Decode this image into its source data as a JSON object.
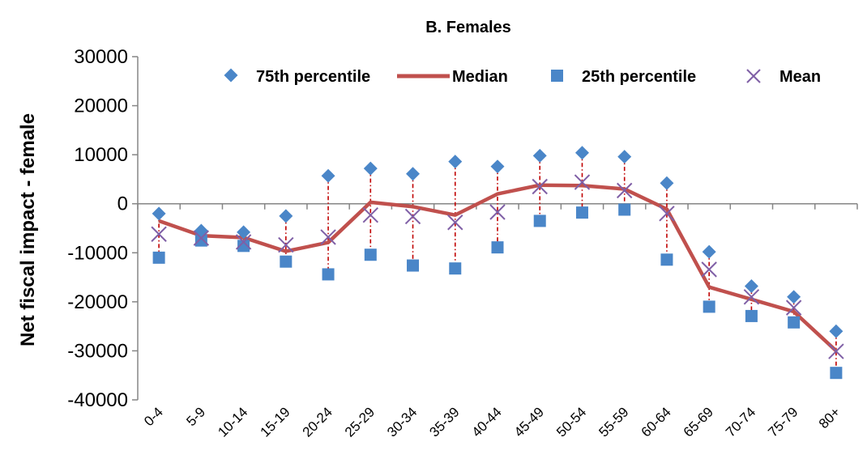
{
  "chart_data": {
    "type": "line",
    "title": "B.  Females",
    "ylabel": "Net fiscal impact - female",
    "xlabel": "",
    "ylim": [
      -40000,
      30000
    ],
    "yticks": [
      30000,
      20000,
      10000,
      0,
      -10000,
      -20000,
      -30000,
      -40000
    ],
    "ytick_labels": [
      "30000",
      "20000",
      "10000",
      "0",
      "-10000",
      "-20000",
      "-30000",
      "-40000"
    ],
    "categories": [
      "0-4",
      "5-9",
      "10-14",
      "15-19",
      "20-24",
      "25-29",
      "30-34",
      "35-39",
      "40-44",
      "45-49",
      "50-54",
      "55-59",
      "60-64",
      "65-69",
      "70-74",
      "75-79",
      "80+"
    ],
    "grid": false,
    "legend_position": "top",
    "series": [
      {
        "name": "75th percentile",
        "marker": "diamond",
        "color": "#4a86c8",
        "values": [
          -2000,
          -5500,
          -5800,
          -2500,
          5700,
          7200,
          6100,
          8600,
          7600,
          9800,
          10400,
          9600,
          4200,
          -9800,
          -16800,
          -19000,
          -26000
        ]
      },
      {
        "name": "Median",
        "marker": "line",
        "color": "#c0504d",
        "values": [
          -3500,
          -6500,
          -6900,
          -9700,
          -7900,
          300,
          -600,
          -2300,
          2000,
          3800,
          3700,
          3000,
          -1100,
          -17000,
          -19500,
          -22000,
          -30000
        ]
      },
      {
        "name": "25th percentile",
        "marker": "square",
        "color": "#4a86c8",
        "values": [
          -11000,
          -7500,
          -8600,
          -11800,
          -14400,
          -10400,
          -12600,
          -13200,
          -8900,
          -3500,
          -1800,
          -1200,
          -11400,
          -21000,
          -22900,
          -24200,
          -34500
        ]
      },
      {
        "name": "Mean",
        "marker": "x",
        "color": "#7f5fa6",
        "values": [
          -6200,
          -7000,
          -7800,
          -8400,
          -6800,
          -2300,
          -2600,
          -3800,
          -1700,
          3500,
          4400,
          2700,
          -2000,
          -13400,
          -19000,
          -21200,
          -30100
        ]
      }
    ]
  }
}
